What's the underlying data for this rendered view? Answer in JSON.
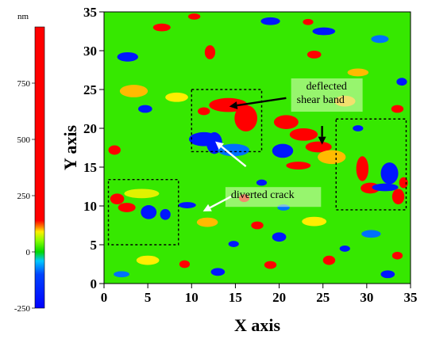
{
  "chart_data": {
    "type": "heatmap",
    "xlabel": "X axis",
    "ylabel": "Y axis",
    "xlim": [
      0,
      35
    ],
    "ylim": [
      0,
      35
    ],
    "x_ticks": [
      0,
      5,
      10,
      15,
      20,
      25,
      30,
      35
    ],
    "y_ticks": [
      0,
      5,
      10,
      15,
      20,
      25,
      30,
      35
    ],
    "x_tick_labels": [
      "0",
      "5",
      "10",
      "15",
      "20",
      "25",
      "30",
      "35"
    ],
    "y_tick_labels": [
      "0",
      "5",
      "10",
      "15",
      "20",
      "25",
      "30",
      "35"
    ],
    "colorbar": {
      "unit": "nm",
      "min": -250,
      "max": 1000,
      "ticks": [
        -250,
        0,
        250,
        500,
        750
      ],
      "tick_labels": [
        "-250",
        "0",
        "250",
        "500",
        "750"
      ],
      "stops": [
        {
          "value": -250,
          "color": "#0000ff"
        },
        {
          "value": -100,
          "color": "#0044ff"
        },
        {
          "value": -40,
          "color": "#00c8ff"
        },
        {
          "value": 0,
          "color": "#00d800"
        },
        {
          "value": 50,
          "color": "#88ff00"
        },
        {
          "value": 90,
          "color": "#ffee00"
        },
        {
          "value": 110,
          "color": "#ff8800"
        },
        {
          "value": 140,
          "color": "#ff0000"
        },
        {
          "value": 1000,
          "color": "#ff0000"
        }
      ]
    },
    "background_level_nm": 20,
    "features": [
      {
        "x": 14.2,
        "y": 23.0,
        "rx": 2.2,
        "ry": 0.9,
        "value": 600
      },
      {
        "x": 16.2,
        "y": 21.3,
        "rx": 1.3,
        "ry": 1.7,
        "value": 600
      },
      {
        "x": 11.4,
        "y": 18.6,
        "rx": 1.7,
        "ry": 0.9,
        "value": -200
      },
      {
        "x": 12.6,
        "y": 18.1,
        "rx": 0.9,
        "ry": 1.4,
        "value": -200
      },
      {
        "x": 14.8,
        "y": 17.2,
        "rx": 1.8,
        "ry": 0.8,
        "value": -80
      },
      {
        "x": 11.4,
        "y": 22.2,
        "rx": 0.7,
        "ry": 0.5,
        "value": 600
      },
      {
        "x": 20.8,
        "y": 20.8,
        "rx": 1.4,
        "ry": 0.9,
        "value": 600
      },
      {
        "x": 22.8,
        "y": 19.2,
        "rx": 1.6,
        "ry": 0.8,
        "value": 600
      },
      {
        "x": 24.5,
        "y": 17.6,
        "rx": 1.5,
        "ry": 0.7,
        "value": 600
      },
      {
        "x": 20.4,
        "y": 17.1,
        "rx": 1.2,
        "ry": 0.9,
        "value": -200
      },
      {
        "x": 22.2,
        "y": 15.2,
        "rx": 1.4,
        "ry": 0.5,
        "value": 600
      },
      {
        "x": 26.0,
        "y": 16.3,
        "rx": 1.6,
        "ry": 0.9,
        "value": 100
      },
      {
        "x": 29.5,
        "y": 14.8,
        "rx": 0.7,
        "ry": 1.6,
        "value": 600
      },
      {
        "x": 30.4,
        "y": 12.3,
        "rx": 1.1,
        "ry": 0.7,
        "value": 600
      },
      {
        "x": 32.6,
        "y": 14.2,
        "rx": 1.0,
        "ry": 1.4,
        "value": -200
      },
      {
        "x": 32.1,
        "y": 12.4,
        "rx": 1.5,
        "ry": 0.5,
        "value": -200
      },
      {
        "x": 33.6,
        "y": 11.2,
        "rx": 0.7,
        "ry": 1.0,
        "value": 600
      },
      {
        "x": 34.2,
        "y": 13.0,
        "rx": 0.5,
        "ry": 0.7,
        "value": 300
      },
      {
        "x": 1.5,
        "y": 10.9,
        "rx": 0.8,
        "ry": 0.7,
        "value": 600
      },
      {
        "x": 2.6,
        "y": 9.8,
        "rx": 1.0,
        "ry": 0.6,
        "value": 600
      },
      {
        "x": 5.1,
        "y": 9.2,
        "rx": 0.9,
        "ry": 0.9,
        "value": -200
      },
      {
        "x": 7.0,
        "y": 8.9,
        "rx": 0.6,
        "ry": 0.7,
        "value": -200
      },
      {
        "x": 9.5,
        "y": 10.1,
        "rx": 1.0,
        "ry": 0.4,
        "value": -200
      },
      {
        "x": 4.3,
        "y": 11.6,
        "rx": 2.0,
        "ry": 0.6,
        "value": 80
      },
      {
        "x": 6.6,
        "y": 33.0,
        "rx": 1.0,
        "ry": 0.5,
        "value": 600
      },
      {
        "x": 10.3,
        "y": 34.4,
        "rx": 0.7,
        "ry": 0.4,
        "value": 600
      },
      {
        "x": 12.1,
        "y": 29.8,
        "rx": 0.6,
        "ry": 0.9,
        "value": 600
      },
      {
        "x": 2.7,
        "y": 29.2,
        "rx": 1.2,
        "ry": 0.6,
        "value": -200
      },
      {
        "x": 19.0,
        "y": 33.8,
        "rx": 1.1,
        "ry": 0.5,
        "value": -200
      },
      {
        "x": 25.1,
        "y": 32.5,
        "rx": 1.3,
        "ry": 0.5,
        "value": -200
      },
      {
        "x": 24.0,
        "y": 29.5,
        "rx": 0.8,
        "ry": 0.5,
        "value": 600
      },
      {
        "x": 31.5,
        "y": 31.5,
        "rx": 1.0,
        "ry": 0.5,
        "value": -80
      },
      {
        "x": 34.0,
        "y": 26.0,
        "rx": 0.6,
        "ry": 0.5,
        "value": -200
      },
      {
        "x": 29.0,
        "y": 27.2,
        "rx": 1.2,
        "ry": 0.5,
        "value": 100
      },
      {
        "x": 1.2,
        "y": 17.2,
        "rx": 0.7,
        "ry": 0.6,
        "value": 600
      },
      {
        "x": 4.7,
        "y": 22.5,
        "rx": 0.8,
        "ry": 0.5,
        "value": -200
      },
      {
        "x": 3.4,
        "y": 24.8,
        "rx": 1.6,
        "ry": 0.8,
        "value": 100
      },
      {
        "x": 8.3,
        "y": 24.0,
        "rx": 1.3,
        "ry": 0.6,
        "value": 90
      },
      {
        "x": 23.3,
        "y": 33.7,
        "rx": 0.6,
        "ry": 0.4,
        "value": 600
      },
      {
        "x": 17.5,
        "y": 7.5,
        "rx": 0.7,
        "ry": 0.5,
        "value": 600
      },
      {
        "x": 20.0,
        "y": 6.0,
        "rx": 0.8,
        "ry": 0.6,
        "value": -200
      },
      {
        "x": 14.8,
        "y": 5.1,
        "rx": 0.6,
        "ry": 0.4,
        "value": -200
      },
      {
        "x": 19.0,
        "y": 2.4,
        "rx": 0.7,
        "ry": 0.5,
        "value": 600
      },
      {
        "x": 27.5,
        "y": 4.5,
        "rx": 0.6,
        "ry": 0.4,
        "value": -200
      },
      {
        "x": 25.7,
        "y": 3.0,
        "rx": 0.7,
        "ry": 0.6,
        "value": 600
      },
      {
        "x": 32.4,
        "y": 1.2,
        "rx": 0.8,
        "ry": 0.5,
        "value": -200
      },
      {
        "x": 33.5,
        "y": 3.6,
        "rx": 0.6,
        "ry": 0.5,
        "value": 600
      },
      {
        "x": 30.5,
        "y": 6.4,
        "rx": 1.1,
        "ry": 0.5,
        "value": -80
      },
      {
        "x": 13.0,
        "y": 1.5,
        "rx": 0.8,
        "ry": 0.5,
        "value": -200
      },
      {
        "x": 9.2,
        "y": 2.5,
        "rx": 0.6,
        "ry": 0.5,
        "value": 600
      },
      {
        "x": 5.0,
        "y": 3.0,
        "rx": 1.3,
        "ry": 0.6,
        "value": 90
      },
      {
        "x": 2.0,
        "y": 1.2,
        "rx": 0.9,
        "ry": 0.4,
        "value": -80
      },
      {
        "x": 11.8,
        "y": 7.9,
        "rx": 1.2,
        "ry": 0.6,
        "value": 100
      },
      {
        "x": 16.0,
        "y": 11.0,
        "rx": 0.6,
        "ry": 0.5,
        "value": 600
      },
      {
        "x": 18.0,
        "y": 13.0,
        "rx": 0.6,
        "ry": 0.4,
        "value": -200
      },
      {
        "x": 20.5,
        "y": 9.8,
        "rx": 0.7,
        "ry": 0.4,
        "value": -80
      },
      {
        "x": 24.0,
        "y": 8.0,
        "rx": 1.4,
        "ry": 0.6,
        "value": 90
      },
      {
        "x": 29.0,
        "y": 20.0,
        "rx": 0.6,
        "ry": 0.4,
        "value": -200
      },
      {
        "x": 33.5,
        "y": 22.5,
        "rx": 0.7,
        "ry": 0.5,
        "value": 600
      },
      {
        "x": 27.5,
        "y": 23.5,
        "rx": 1.2,
        "ry": 0.7,
        "value": 100
      }
    ],
    "annotation_boxes": [
      {
        "x0": 10.0,
        "x1": 18.0,
        "y0": 17.0,
        "y1": 25.0
      },
      {
        "x0": 26.5,
        "x1": 34.5,
        "y0": 9.5,
        "y1": 21.2
      },
      {
        "x0": 0.5,
        "x1": 8.5,
        "y0": 5.0,
        "y1": 13.4
      }
    ],
    "annotations": [
      {
        "text_lines": [
          "deflected",
          "shear band"
        ],
        "label_x": 22.0,
        "label_y": 25.0
      },
      {
        "text_lines": [
          "diverted crack"
        ],
        "label_x": 14.5,
        "label_y": 11.0
      }
    ],
    "arrows": [
      {
        "color": "black",
        "from": [
          20.8,
          23.9
        ],
        "to": [
          14.3,
          22.8
        ]
      },
      {
        "color": "black",
        "from": [
          24.9,
          20.3
        ],
        "to": [
          24.9,
          17.9
        ]
      },
      {
        "color": "white",
        "from": [
          16.2,
          15.1
        ],
        "to": [
          12.7,
          18.3
        ]
      },
      {
        "color": "white",
        "from": [
          14.5,
          11.2
        ],
        "to": [
          11.3,
          9.3
        ]
      }
    ]
  }
}
